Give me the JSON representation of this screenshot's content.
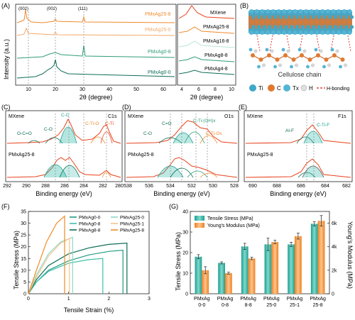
{
  "panel_letters": {
    "A": "(A)",
    "B": "(B)",
    "C": "(C)",
    "D": "(D)",
    "E": "(E)",
    "F": "(F)",
    "G": "(G)"
  },
  "colors": {
    "mx00": "#0e6d57",
    "mx08": "#2f9c7a",
    "mx250": "#f2a96a",
    "mx258": "#ef8a2c",
    "mxene_line": "#e8421c",
    "teal": "#28b4a4",
    "orange": "#f58f39",
    "ti": "#3fa8c6",
    "c": "#e07930",
    "tx": "#55b5d6",
    "h": "#d9d9d9",
    "hbond": "#e0241c"
  },
  "panelA": {
    "ylabel": "Intensity (a.u.)",
    "xlabel": "2θ (degree)",
    "peak_labels": [
      "(002)",
      "(002)",
      "(111)"
    ],
    "series_labels": [
      "PMxAg25-8",
      "PMxAg25-0",
      "PMxAg0-8",
      "PMxAg0-0"
    ],
    "x_ticks": [
      "10",
      "20",
      "30",
      "40",
      "50",
      "60"
    ]
  },
  "panelA2": {
    "xlabel": "2θ (degree)",
    "series_labels": [
      "MXene",
      "PMxAg25-8",
      "PMxAg16-8",
      "PMxAg8-8",
      "PMxAg4-8"
    ],
    "x_ticks": [
      "4",
      "6",
      "8",
      "10"
    ]
  },
  "panelB": {
    "caption": "Cellulose chain",
    "legend": [
      "Ti",
      "C",
      "Tx",
      "H",
      "H-bonding"
    ]
  },
  "panelC": {
    "title": "C1s",
    "top_label": "MXene",
    "bottom_label": "PMxAg25-8",
    "peak_labels": [
      "O-C=O",
      "C-O",
      "C-C",
      "C-Ti-O",
      "C-Ti"
    ],
    "xlabel": "Binding energy (eV)",
    "x_ticks": [
      "292",
      "290",
      "288",
      "286",
      "284",
      "282",
      "280"
    ]
  },
  "panelD": {
    "title": "O1s",
    "top_label": "MXene",
    "bottom_label": "PMxAg25-8",
    "peak_labels": [
      "C=O",
      "C-O",
      "C-Ti-(OH)x",
      "C-Ti-Ox"
    ],
    "xlabel": "Binding energy (eV)",
    "x_ticks": [
      "538",
      "536",
      "534",
      "532",
      "530",
      "528"
    ]
  },
  "panelE": {
    "title": "F1s",
    "top_label": "MXene",
    "bottom_label": "PMxAg25-8",
    "peak_labels": [
      "Al-F",
      "C-Ti-F"
    ],
    "xlabel": "Binding energy (eV)",
    "x_ticks": [
      "690",
      "688",
      "686",
      "684",
      "682"
    ]
  },
  "chart_data": [
    {
      "panel": "F",
      "type": "line",
      "xlabel": "Tensile Strain (%)",
      "ylabel": "Tensile Stress (MPa)",
      "xlim": [
        0,
        3
      ],
      "ylim": [
        0,
        35
      ],
      "x_ticks": [
        0,
        1,
        2,
        3
      ],
      "y_ticks": [
        0,
        5,
        10,
        15,
        20,
        25,
        30,
        35
      ],
      "series": [
        {
          "name": "PMxAg0-0",
          "color": "#1f9c82",
          "x": [
            0,
            0.2,
            0.5,
            1.0,
            1.5,
            2.0,
            2.35
          ],
          "y": [
            0,
            5,
            10,
            14,
            16.5,
            18,
            18.5
          ]
        },
        {
          "name": "PMxAg0-8",
          "color": "#3dbfa8",
          "x": [
            0,
            0.2,
            0.5,
            1.0,
            1.5,
            1.85
          ],
          "y": [
            0,
            5,
            9.5,
            13,
            14.5,
            15
          ]
        },
        {
          "name": "PMxAg8-8",
          "color": "#0e6d57",
          "x": [
            0,
            0.2,
            0.5,
            1.0,
            1.5,
            2.0,
            2.45
          ],
          "y": [
            0,
            6,
            12,
            17,
            19.5,
            21,
            21.5
          ]
        },
        {
          "name": "PMxAg25-0",
          "color": "#8ad9c9",
          "x": [
            0,
            0.2,
            0.5,
            0.8,
            1.1
          ],
          "y": [
            0,
            8,
            17,
            22,
            24
          ]
        },
        {
          "name": "PMxAg25-1",
          "color": "#f7c389",
          "x": [
            0,
            0.2,
            0.5,
            0.8,
            1.02
          ],
          "y": [
            0,
            7,
            16,
            21.5,
            23.5
          ]
        },
        {
          "name": "PMxAg25-8",
          "color": "#f18a21",
          "x": [
            0,
            0.2,
            0.45,
            0.7,
            0.9
          ],
          "y": [
            0,
            10,
            22,
            30,
            33
          ]
        }
      ]
    },
    {
      "panel": "G",
      "type": "bar",
      "categories": [
        "0-0",
        "0-8",
        "8-8",
        "25-0",
        "25-1",
        "25-8"
      ],
      "category_prefix": "PMxAg",
      "ylabel_left": "Tensile Stress (MPa)",
      "ylabel_right": "Young's Modulus (MPa)",
      "ylim_left": [
        0,
        40
      ],
      "ylim_right": [
        0,
        7000
      ],
      "y_ticks_left": [
        0,
        10,
        20,
        30,
        40
      ],
      "y_ticks_right": [
        "0",
        "2k",
        "4k",
        "6k"
      ],
      "series": [
        {
          "name": "Tensile Stress (MPa)",
          "axis": "left",
          "color": "#28b4a4",
          "values": [
            18,
            15,
            23,
            24,
            24,
            34
          ],
          "errors": [
            1,
            0.5,
            1.5,
            3,
            1,
            1
          ]
        },
        {
          "name": "Young's Modulus (MPa)",
          "axis": "right",
          "color": "#f58f39",
          "values": [
            2000,
            1750,
            3000,
            4400,
            4900,
            6200
          ],
          "errors": [
            300,
            80,
            100,
            150,
            250,
            450
          ]
        }
      ],
      "legend_position": "top-left"
    }
  ]
}
